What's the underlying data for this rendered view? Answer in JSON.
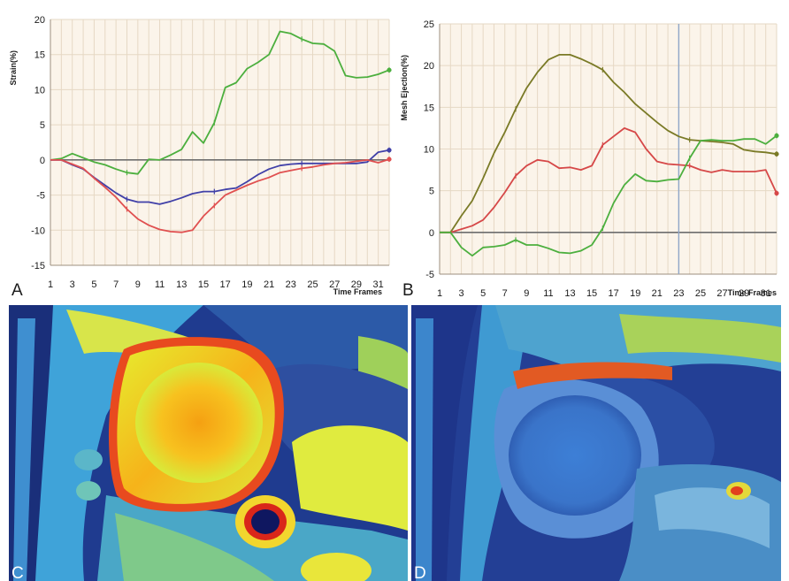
{
  "chart_data": [
    {
      "panel_label": "A",
      "type": "line",
      "xlabel": "Time Frames",
      "ylabel": "Strain(%)",
      "xlim": [
        1,
        32
      ],
      "ylim": [
        -15,
        20
      ],
      "x_ticks": [
        1,
        3,
        5,
        7,
        9,
        11,
        13,
        15,
        17,
        19,
        21,
        23,
        25,
        27,
        29,
        31
      ],
      "y_ticks": [
        -15,
        -10,
        -5,
        0,
        5,
        10,
        15,
        20
      ],
      "grid": true,
      "x": [
        1,
        2,
        3,
        4,
        5,
        6,
        7,
        8,
        9,
        10,
        11,
        12,
        13,
        14,
        15,
        16,
        17,
        18,
        19,
        20,
        21,
        22,
        23,
        24,
        25,
        26,
        27,
        28,
        29,
        30,
        31,
        32
      ],
      "series": [
        {
          "color": "#4caf3e",
          "values": [
            0,
            0.2,
            0.9,
            0.3,
            -0.3,
            -0.7,
            -1.3,
            -1.8,
            -2.0,
            0.1,
            0,
            0.7,
            1.5,
            4.0,
            2.4,
            5.3,
            10.3,
            11.0,
            13.0,
            13.9,
            15.0,
            18.3,
            18.0,
            17.2,
            16.6,
            16.5,
            15.5,
            12.0,
            11.7,
            11.8,
            12.2,
            12.8
          ]
        },
        {
          "color": "#4040a8",
          "values": [
            0,
            0,
            -0.7,
            -1.3,
            -2.5,
            -3.6,
            -4.7,
            -5.6,
            -6.0,
            -6.0,
            -6.3,
            -5.9,
            -5.4,
            -4.8,
            -4.5,
            -4.5,
            -4.2,
            -4.0,
            -3.1,
            -2.1,
            -1.3,
            -0.8,
            -0.6,
            -0.5,
            -0.5,
            -0.5,
            -0.5,
            -0.5,
            -0.5,
            -0.3,
            1.1,
            1.4
          ]
        },
        {
          "color": "#e05050",
          "values": [
            0,
            0,
            -0.6,
            -1.2,
            -2.6,
            -3.9,
            -5.3,
            -7.0,
            -8.4,
            -9.3,
            -9.9,
            -10.2,
            -10.3,
            -10.0,
            -8.0,
            -6.5,
            -5.0,
            -4.3,
            -3.6,
            -3.0,
            -2.5,
            -1.8,
            -1.5,
            -1.2,
            -1.0,
            -0.7,
            -0.5,
            -0.4,
            -0.2,
            0,
            -0.4,
            0.1
          ]
        }
      ]
    },
    {
      "panel_label": "B",
      "type": "line",
      "xlabel": "Time Frames",
      "ylabel": "Mesh Ejection(%)",
      "xlim": [
        1,
        32
      ],
      "ylim": [
        -5,
        25
      ],
      "x_ticks": [
        1,
        3,
        5,
        7,
        9,
        11,
        13,
        15,
        17,
        19,
        21,
        23,
        25,
        27,
        29,
        31
      ],
      "y_ticks": [
        -5,
        0,
        5,
        10,
        15,
        20,
        25
      ],
      "grid": true,
      "cursor_x": 23,
      "x": [
        1,
        2,
        3,
        4,
        5,
        6,
        7,
        8,
        9,
        10,
        11,
        12,
        13,
        14,
        15,
        16,
        17,
        18,
        19,
        20,
        21,
        22,
        23,
        24,
        25,
        26,
        27,
        28,
        29,
        30,
        31,
        32
      ],
      "series": [
        {
          "color": "#7a7a26",
          "values": [
            0,
            0,
            2.0,
            3.8,
            6.5,
            9.5,
            12.0,
            14.8,
            17.3,
            19.2,
            20.7,
            21.3,
            21.3,
            20.8,
            20.2,
            19.5,
            18.0,
            16.8,
            15.4,
            14.3,
            13.2,
            12.2,
            11.5,
            11.1,
            11.0,
            10.9,
            10.8,
            10.6,
            9.9,
            9.7,
            9.6,
            9.4
          ]
        },
        {
          "color": "#d64848",
          "values": [
            0,
            0,
            0.4,
            0.8,
            1.5,
            3.0,
            4.8,
            6.8,
            8.0,
            8.7,
            8.5,
            7.7,
            7.8,
            7.5,
            8.0,
            10.5,
            11.5,
            12.5,
            12.0,
            10.0,
            8.5,
            8.2,
            8.1,
            8.0,
            7.5,
            7.2,
            7.5,
            7.3,
            7.3,
            7.3,
            7.5,
            4.7
          ]
        },
        {
          "color": "#4caf3e",
          "values": [
            0,
            0,
            -1.8,
            -2.8,
            -1.8,
            -1.7,
            -1.5,
            -0.9,
            -1.5,
            -1.5,
            -1.9,
            -2.4,
            -2.5,
            -2.2,
            -1.5,
            0.5,
            3.5,
            5.7,
            7.0,
            6.2,
            6.1,
            6.3,
            6.4,
            8.9,
            11.0,
            11.1,
            11.0,
            11.0,
            11.2,
            11.2,
            10.6,
            11.6
          ]
        }
      ]
    }
  ],
  "panel_labels": {
    "c": "C",
    "d": "D"
  }
}
